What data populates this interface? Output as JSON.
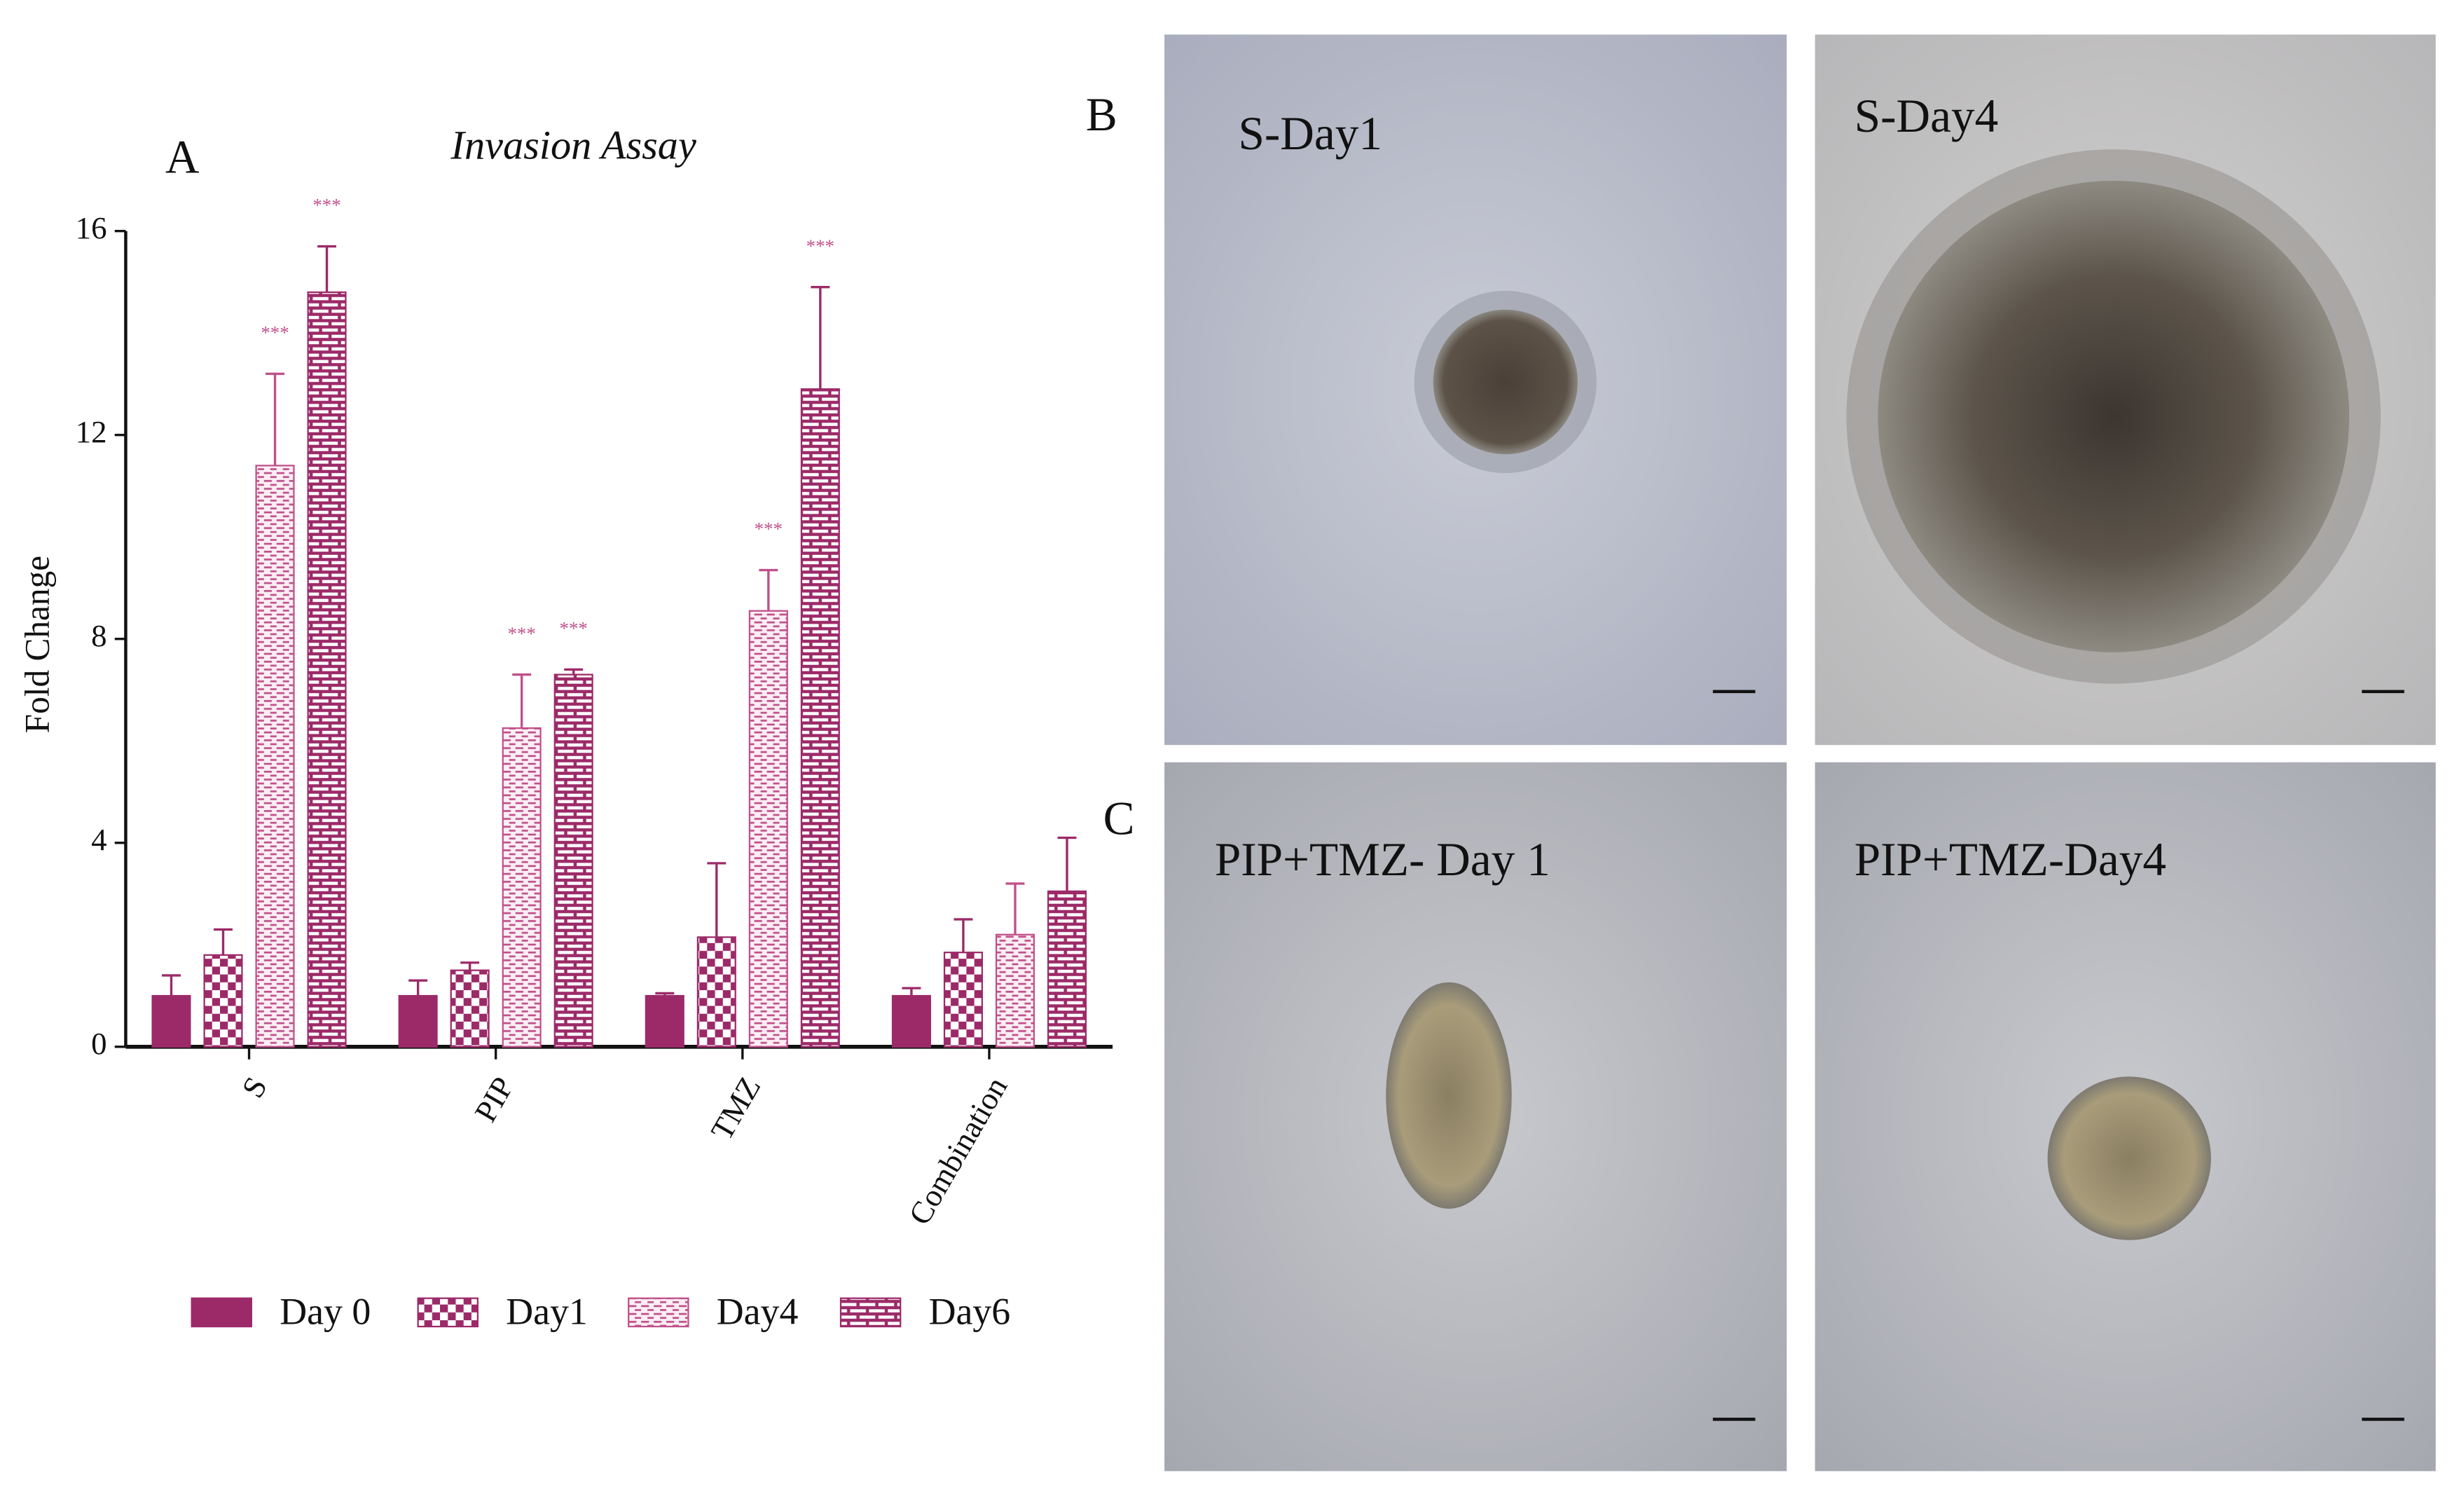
{
  "chart_data": {
    "type": "bar",
    "title": "Invasion Assay",
    "y_label": "Fold Change",
    "categories": [
      "S",
      "PIP",
      "TMZ",
      "Combination"
    ],
    "series": [
      {
        "name": "Day 0",
        "color": "#9c2a68",
        "pattern": "solid",
        "values": [
          1.0,
          1.0,
          1.0,
          1.0
        ],
        "errors": [
          0.4,
          0.3,
          0.05,
          0.15
        ],
        "annotations": [
          null,
          null,
          null,
          null
        ]
      },
      {
        "name": "Day1",
        "color": "#9c2a68",
        "pattern": "checker",
        "values": [
          1.8,
          1.5,
          2.15,
          1.85
        ],
        "errors": [
          0.5,
          0.15,
          1.45,
          0.65
        ],
        "annotations": [
          null,
          null,
          null,
          null
        ]
      },
      {
        "name": "Day4",
        "color": "#c0508a",
        "pattern": "dash",
        "values": [
          11.4,
          6.25,
          8.55,
          2.2
        ],
        "errors": [
          1.8,
          1.05,
          0.8,
          1.0
        ],
        "annotations": [
          "***",
          "***",
          "***",
          null
        ]
      },
      {
        "name": "Day6",
        "color": "#9c2a68",
        "pattern": "brick",
        "values": [
          14.8,
          7.3,
          12.9,
          3.05
        ],
        "errors": [
          0.9,
          0.1,
          2.0,
          1.05
        ],
        "annotations": [
          "***",
          "***",
          "***",
          null
        ]
      }
    ],
    "ylim": [
      0,
      16
    ],
    "yticks": [
      0,
      4,
      8,
      12,
      16
    ]
  },
  "figure": {
    "panel_labels": [
      "A",
      "B",
      "C"
    ],
    "images": [
      "S-Day1",
      "S-Day4",
      "PIP+TMZ- Day 1",
      "PIP+TMZ-Day4"
    ]
  }
}
